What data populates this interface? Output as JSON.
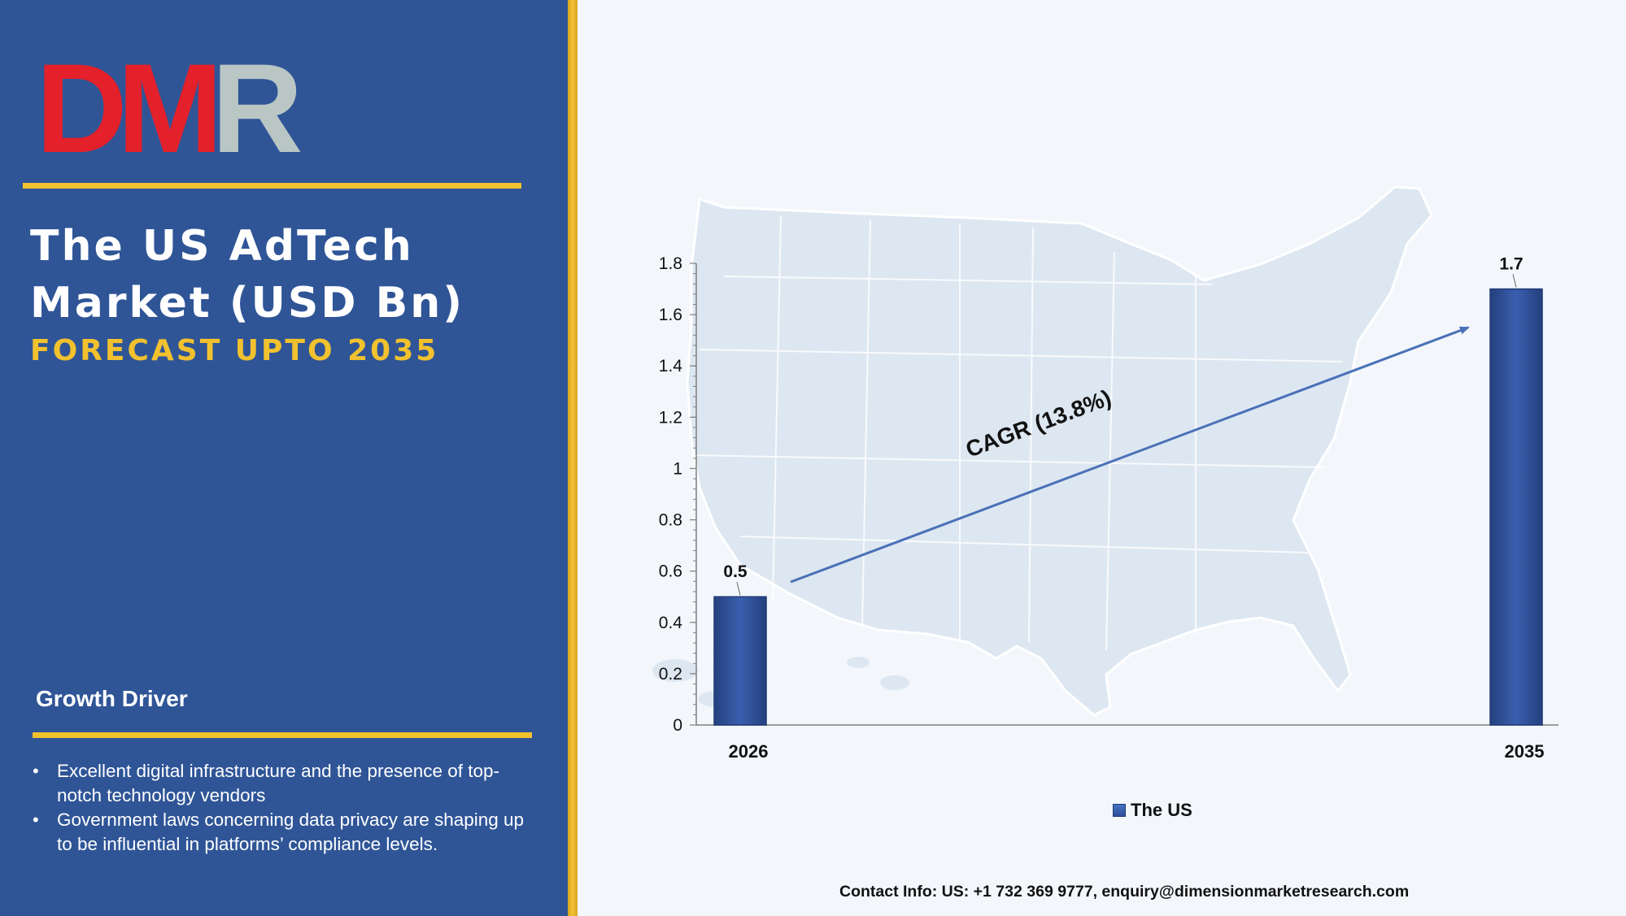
{
  "logo": {
    "text": "DMR",
    "part1": "D",
    "part2": "M",
    "part3": "R"
  },
  "title": "The US AdTech Market (USD Bn)",
  "subtitle": "FORECAST UPTO 2035",
  "growth_driver": {
    "heading": "Growth Driver",
    "bullets": [
      "Excellent digital infrastructure and the presence of top-notch technology vendors",
      "Government laws concerning data privacy are shaping up to be influential in platforms’ compliance levels."
    ]
  },
  "colors": {
    "panel": "#2f5597",
    "accent_gold": "#f2c12e",
    "bar": "#2f4f9a",
    "logo_red": "#e4202a",
    "logo_gray": "#b9c6c4"
  },
  "chart_data": {
    "type": "bar",
    "categories": [
      "2026",
      "2035"
    ],
    "series": [
      {
        "name": "The US",
        "values": [
          0.5,
          1.7
        ]
      }
    ],
    "data_labels": [
      "0.5",
      "1.7"
    ],
    "ylim": [
      0,
      1.8
    ],
    "yticks": [
      "0",
      "0.2",
      "0.4",
      "0.6",
      "0.8",
      "1",
      "1.2",
      "1.4",
      "1.6",
      "1.8"
    ],
    "annotation": "CAGR (13.8%)",
    "legend": "bottom",
    "grid": false,
    "xlabel": "",
    "ylabel": ""
  },
  "contact": "Contact Info: US: +1 732 369 9777, enquiry@dimensionmarketresearch.com"
}
